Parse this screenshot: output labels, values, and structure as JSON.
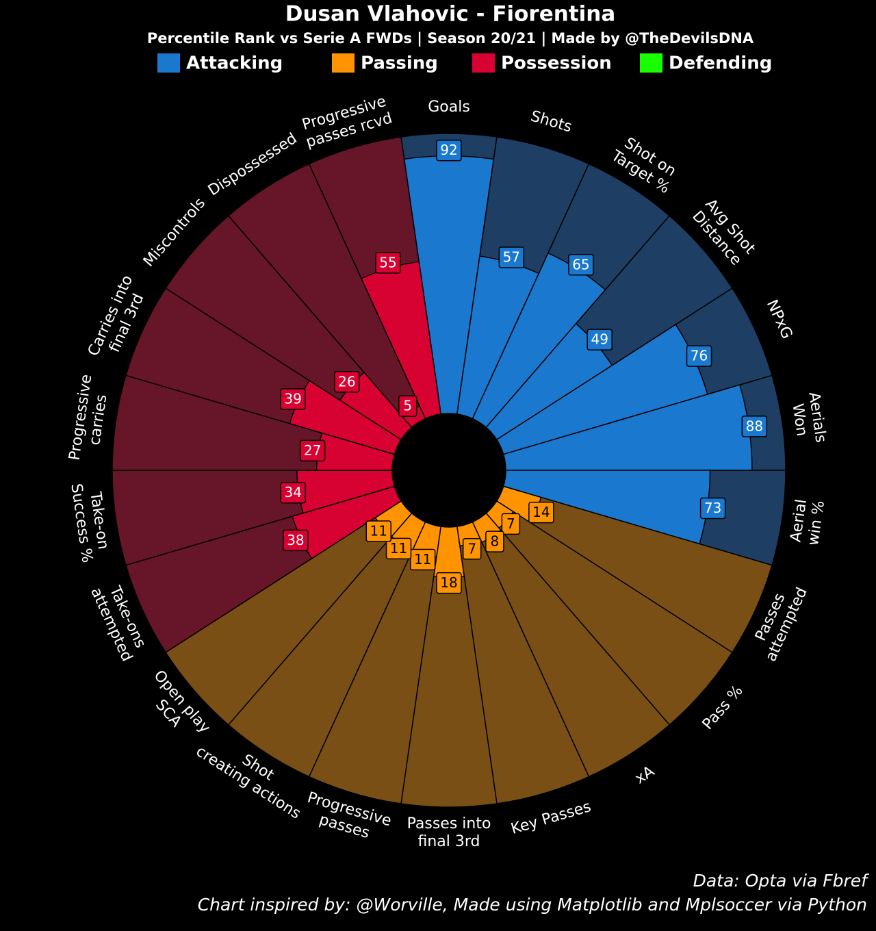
{
  "chart_data": {
    "type": "pizza",
    "title": "Dusan Vlahovic - Fiorentina",
    "subtitle": "Percentile Rank vs Serie A FWDs | Season 20/21 | Made by @TheDevilsDNA",
    "categories": [
      [
        "Goals"
      ],
      [
        "Shots"
      ],
      [
        "Shot on",
        "Target %"
      ],
      [
        "Avg Shot",
        "Distance"
      ],
      [
        "NPxG"
      ],
      [
        "Aerials",
        "Won"
      ],
      [
        "Aerial",
        "win %"
      ],
      [
        "Passes",
        "attempted"
      ],
      [
        "Pass %"
      ],
      [
        "xA"
      ],
      [
        "Key Passes"
      ],
      [
        "Passes into",
        "final 3rd"
      ],
      [
        "Progressive",
        "passes"
      ],
      [
        "Shot",
        "creating actions"
      ],
      [
        "Open play",
        "SCA"
      ],
      [
        "Take-ons",
        "attempted"
      ],
      [
        "Take-on",
        "Success %"
      ],
      [
        "Progressive",
        "carries"
      ],
      [
        "Carries into",
        "final 3rd"
      ],
      [
        "Miscontrols"
      ],
      [
        "Dispossessed"
      ],
      [
        "Progressive",
        "passes rcvd"
      ]
    ],
    "series": [
      {
        "name": "Attacking",
        "color": "#1a78cf",
        "background": "#1f3e63",
        "text_color": "#ffffff",
        "values": [
          92,
          57,
          65,
          49,
          76,
          88,
          73,
          null,
          null,
          null,
          null,
          null,
          null,
          null,
          null,
          null,
          null,
          null,
          null,
          null,
          null,
          null
        ]
      },
      {
        "name": "Passing",
        "color": "#ff9300",
        "background": "#7a4f15",
        "text_color": "#000000",
        "values": [
          null,
          null,
          null,
          null,
          null,
          null,
          null,
          14,
          7,
          8,
          7,
          18,
          11,
          11,
          11,
          null,
          null,
          null,
          null,
          null,
          null,
          null
        ]
      },
      {
        "name": "Possession",
        "color": "#d70232",
        "background": "#661628",
        "text_color": "#ffffff",
        "values": [
          null,
          null,
          null,
          null,
          null,
          null,
          null,
          null,
          null,
          null,
          null,
          null,
          null,
          null,
          null,
          38,
          34,
          27,
          39,
          26,
          5,
          55
        ]
      },
      {
        "name": "Defending",
        "color": "#1aff00",
        "background": "#1a5c15",
        "text_color": "#000000",
        "values": [
          null,
          null,
          null,
          null,
          null,
          null,
          null,
          null,
          null,
          null,
          null,
          null,
          null,
          null,
          null,
          null,
          null,
          null,
          null,
          null,
          null,
          null
        ]
      }
    ],
    "ylim": [
      0,
      100
    ],
    "footer": [
      "Data: Opta via Fbref",
      "Chart inspired by: @Worville, Made using Matplotlib and Mplsoccer via Python"
    ]
  }
}
